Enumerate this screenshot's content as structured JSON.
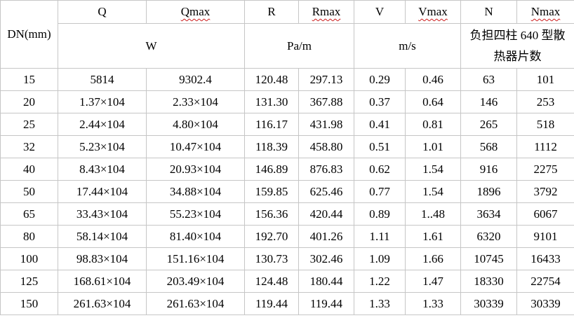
{
  "colors": {
    "background": "#ffffff",
    "text": "#000000",
    "grid_border": "#c6c6c6",
    "spellcheck_underline": "#cc1d1d"
  },
  "table": {
    "corner_label": "DN(mm)",
    "columns": [
      {
        "key": "q",
        "label": "Q",
        "spellcheck_underline": false
      },
      {
        "key": "qmax",
        "label": "Qmax",
        "spellcheck_underline": true
      },
      {
        "key": "r",
        "label": "R",
        "spellcheck_underline": false
      },
      {
        "key": "rmax",
        "label": "Rmax",
        "spellcheck_underline": true
      },
      {
        "key": "v",
        "label": "V",
        "spellcheck_underline": false
      },
      {
        "key": "vmax",
        "label": "Vmax",
        "spellcheck_underline": true
      },
      {
        "key": "n",
        "label": "N",
        "spellcheck_underline": false
      },
      {
        "key": "nmax",
        "label": "Nmax",
        "spellcheck_underline": true
      }
    ],
    "units": {
      "q_unit": "W",
      "r_unit": "Pa/m",
      "v_unit": "m/s",
      "n_unit_line1": "负担四柱 640 型散",
      "n_unit_line2": "热器片数"
    },
    "rows": [
      {
        "dn": "15",
        "q": "5814",
        "qmax": "9302.4",
        "r": "120.48",
        "rmax": "297.13",
        "v": "0.29",
        "vmax": "0.46",
        "n": "63",
        "nmax": "101"
      },
      {
        "dn": "20",
        "q": "1.37×104",
        "qmax": "2.33×104",
        "r": "131.30",
        "rmax": "367.88",
        "v": "0.37",
        "vmax": "0.64",
        "n": "146",
        "nmax": "253"
      },
      {
        "dn": "25",
        "q": "2.44×104",
        "qmax": "4.80×104",
        "r": "116.17",
        "rmax": "431.98",
        "v": "0.41",
        "vmax": "0.81",
        "n": "265",
        "nmax": "518"
      },
      {
        "dn": "32",
        "q": "5.23×104",
        "qmax": "10.47×104",
        "r": "118.39",
        "rmax": "458.80",
        "v": "0.51",
        "vmax": "1.01",
        "n": "568",
        "nmax": "1112"
      },
      {
        "dn": "40",
        "q": "8.43×104",
        "qmax": "20.93×104",
        "r": "146.89",
        "rmax": "876.83",
        "v": "0.62",
        "vmax": "1.54",
        "n": "916",
        "nmax": "2275"
      },
      {
        "dn": "50",
        "q": "17.44×104",
        "qmax": "34.88×104",
        "r": "159.85",
        "rmax": "625.46",
        "v": "0.77",
        "vmax": "1.54",
        "n": "1896",
        "nmax": "3792"
      },
      {
        "dn": "65",
        "q": "33.43×104",
        "qmax": "55.23×104",
        "r": "156.36",
        "rmax": "420.44",
        "v": "0.89",
        "vmax": "1..48",
        "n": "3634",
        "nmax": "6067"
      },
      {
        "dn": "80",
        "q": "58.14×104",
        "qmax": "81.40×104",
        "r": "192.70",
        "rmax": "401.26",
        "v": "1.11",
        "vmax": "1.61",
        "n": "6320",
        "nmax": "9101"
      },
      {
        "dn": "100",
        "q": "98.83×104",
        "qmax": "151.16×104",
        "r": "130.73",
        "rmax": "302.46",
        "v": "1.09",
        "vmax": "1.66",
        "n": "10745",
        "nmax": "16433"
      },
      {
        "dn": "125",
        "q": "168.61×104",
        "qmax": "203.49×104",
        "r": "124.48",
        "rmax": "180.44",
        "v": "1.22",
        "vmax": "1.47",
        "n": "18330",
        "nmax": "22754"
      },
      {
        "dn": "150",
        "q": "261.63×104",
        "qmax": "261.63×104",
        "r": "119.44",
        "rmax": "119.44",
        "v": "1.33",
        "vmax": "1.33",
        "n": "30339",
        "nmax": "30339"
      }
    ]
  }
}
